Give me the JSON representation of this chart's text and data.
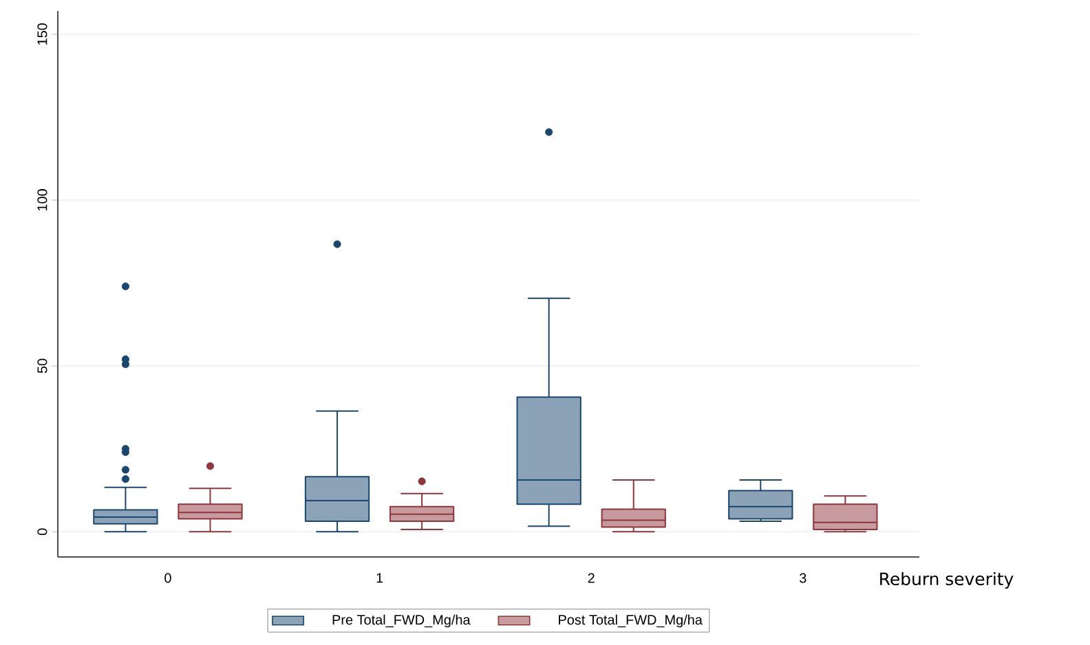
{
  "chart_data": {
    "type": "box",
    "xlabel": "Reburn severity",
    "categories": [
      "0",
      "1",
      "2",
      "3"
    ],
    "ylim": [
      -7.6,
      157
    ],
    "yticks": [
      0,
      50,
      100,
      150
    ],
    "grid": "y",
    "legend": "bottom",
    "series": [
      {
        "name": "Pre Total_FWD_Mg/ha",
        "color": "#1a476f",
        "boxes": [
          {
            "low": 0,
            "q1": 2.4,
            "median": 4.4,
            "q3": 6.6,
            "high": 13.4,
            "outliers": [
              74,
              52,
              50.5,
              25,
              24,
              18.7,
              15.9
            ]
          },
          {
            "low": 0,
            "q1": 3.2,
            "median": 9.4,
            "q3": 16.6,
            "high": 36.4,
            "outliers": [
              86.7
            ]
          },
          {
            "low": 1.7,
            "q1": 8.3,
            "median": 15.6,
            "q3": 40.6,
            "high": 70.4,
            "outliers": [
              120.5
            ]
          },
          {
            "low": 3.2,
            "q1": 3.9,
            "median": 7.6,
            "q3": 12.4,
            "high": 15.6
          }
        ]
      },
      {
        "name": "Post Total_FWD_Mg/ha",
        "color": "#90353b",
        "boxes": [
          {
            "low": 0,
            "q1": 3.9,
            "median": 5.8,
            "q3": 8.3,
            "high": 13.1,
            "outliers": [
              19.8
            ]
          },
          {
            "low": 0.7,
            "q1": 3.2,
            "median": 5.3,
            "q3": 7.6,
            "high": 11.5,
            "outliers": [
              15.2
            ]
          },
          {
            "low": 0,
            "q1": 1.4,
            "median": 3.5,
            "q3": 6.8,
            "high": 15.6
          },
          {
            "low": 0,
            "q1": 0.7,
            "median": 2.8,
            "q3": 8.3,
            "high": 10.8
          }
        ]
      }
    ]
  }
}
